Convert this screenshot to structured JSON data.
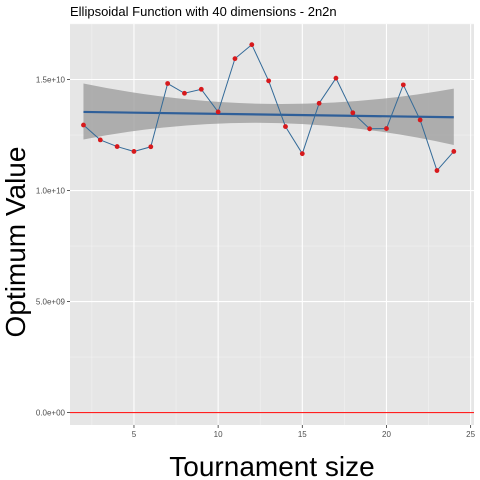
{
  "chart_data": {
    "type": "line",
    "title": "Ellipsoidal Function with 40 dimensions -  2n2n",
    "xlabel": "Tournament size",
    "ylabel": "Optimum Value",
    "xlim": [
      1.2,
      25.2
    ],
    "ylim": [
      -560000000.0,
      17500000000.0
    ],
    "x_ticks": [
      5,
      10,
      15,
      20,
      25
    ],
    "x_tick_labels": [
      "5",
      "10",
      "15",
      "20",
      "25"
    ],
    "y_ticks": [
      0,
      5000000000,
      10000000000,
      15000000000
    ],
    "y_tick_labels": [
      "0.0e+00",
      "5.0e+09",
      "1.0e+10",
      "1.5e+10"
    ],
    "grid": true,
    "series": [
      {
        "x": [
          2,
          3,
          4,
          5,
          6,
          7,
          8,
          9,
          10,
          11,
          12,
          13,
          14,
          15,
          16,
          17,
          18,
          19,
          20,
          21,
          22,
          23,
          24
        ],
        "values": [
          12950000000,
          12280000000,
          11980000000,
          11760000000,
          11970000000,
          14820000000,
          14380000000,
          14560000000,
          13540000000,
          15940000000,
          16570000000,
          14940000000,
          12880000000,
          11660000000,
          13930000000,
          15060000000,
          13500000000,
          12780000000,
          12790000000,
          14760000000,
          13180000000,
          10900000000,
          11760000000
        ]
      }
    ],
    "regression": {
      "x": [
        2,
        24
      ],
      "values": [
        13540000000,
        13300000000
      ],
      "ci_lower": [
        12300000000,
        12050000000
      ],
      "ci_upper": [
        14820000000,
        14590000000
      ],
      "ci_mid_lower": 13050000000,
      "ci_mid_upper": 13900000000
    },
    "reference_line": {
      "y": 0
    },
    "colors": {
      "panel": "#e6e6e6",
      "grid_major": "#ffffff",
      "line": "#336a98",
      "points": "#d7191c",
      "regression": "#2f5f99",
      "ci_band": "#999999",
      "reference": "#ff0000"
    }
  }
}
